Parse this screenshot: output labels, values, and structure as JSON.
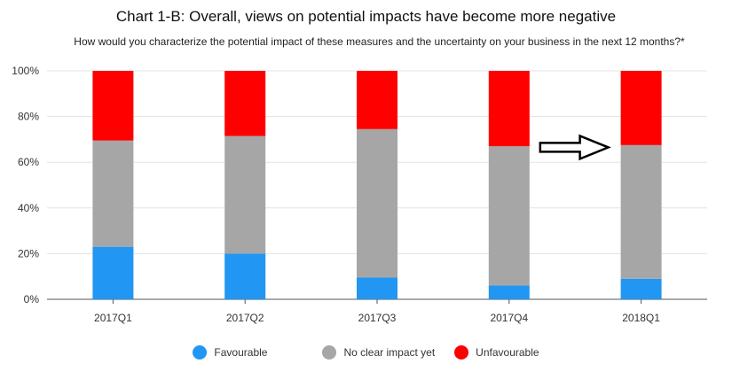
{
  "chart_data": {
    "type": "bar",
    "stacked": true,
    "title": "Chart 1-B: Overall, views on potential impacts have become more negative",
    "subtitle": "How would you characterize the potential impact of these measures and the uncertainty on your business in the next 12 months?*",
    "categories": [
      "2017Q1",
      "2017Q2",
      "2017Q3",
      "2017Q4",
      "2018Q1"
    ],
    "series": [
      {
        "name": "Favourable",
        "color": "#2196f3",
        "values": [
          23,
          20,
          9.5,
          6,
          9
        ]
      },
      {
        "name": "No clear impact yet",
        "color": "#a6a6a6",
        "values": [
          46.5,
          51.5,
          65,
          61,
          58.5
        ]
      },
      {
        "name": "Unfavourable",
        "color": "#ff0000",
        "values": [
          30.5,
          28.5,
          25.5,
          33,
          32.5
        ]
      }
    ],
    "ylim": [
      0,
      100
    ],
    "yticks": [
      "0%",
      "20%",
      "40%",
      "60%",
      "80%",
      "100%"
    ],
    "grid": true,
    "legend_position": "bottom",
    "annotation": {
      "type": "arrow",
      "icon": "right-arrow-icon",
      "from_category": "2017Q4",
      "to_category": "2018Q1"
    }
  }
}
